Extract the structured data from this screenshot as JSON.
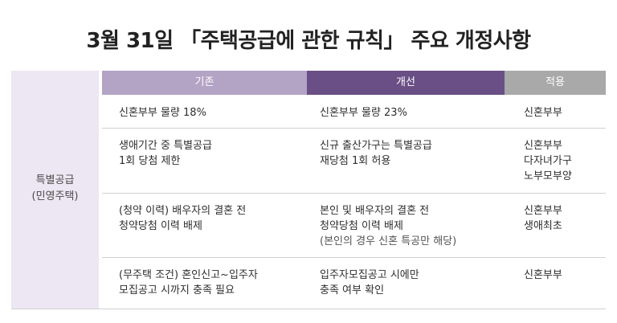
{
  "title": "3월 31일 「주택공급에 관한 규칙」 주요 개정사항",
  "category": {
    "line1": "특별공급",
    "line2": "(민영주택)"
  },
  "headers": {
    "old": "기존",
    "new": "개선",
    "apply": "적용"
  },
  "rows": [
    {
      "old": [
        "신혼부부 물량 18%"
      ],
      "new": [
        "신혼부부 물량 23%"
      ],
      "apply": [
        "신혼부부"
      ]
    },
    {
      "old": [
        "생애기간 중 특별공급",
        "1회 당첨 제한"
      ],
      "new": [
        "신규 출산가구는 특별공급",
        "재당첨 1회 허용"
      ],
      "apply": [
        "신혼부부",
        "다자녀가구",
        "노부모부양"
      ]
    },
    {
      "old": [
        "(청약 이력) 배우자의 결혼 전",
        "청약당첨 이력 배제"
      ],
      "new": [
        "본인 및 배우자의 결혼 전",
        "청약당첨 이력 배제",
        "(본인의 경우 신혼 특공만 해당)"
      ],
      "apply": [
        "신혼부부",
        "생애최초"
      ]
    },
    {
      "old": [
        "(무주택 조건) 혼인신고~입주자",
        "모집공고 시까지 충족 필요"
      ],
      "new": [
        "입주자모집공고 시에만",
        "충족 여부 확인"
      ],
      "apply": [
        "신혼부부"
      ]
    }
  ]
}
